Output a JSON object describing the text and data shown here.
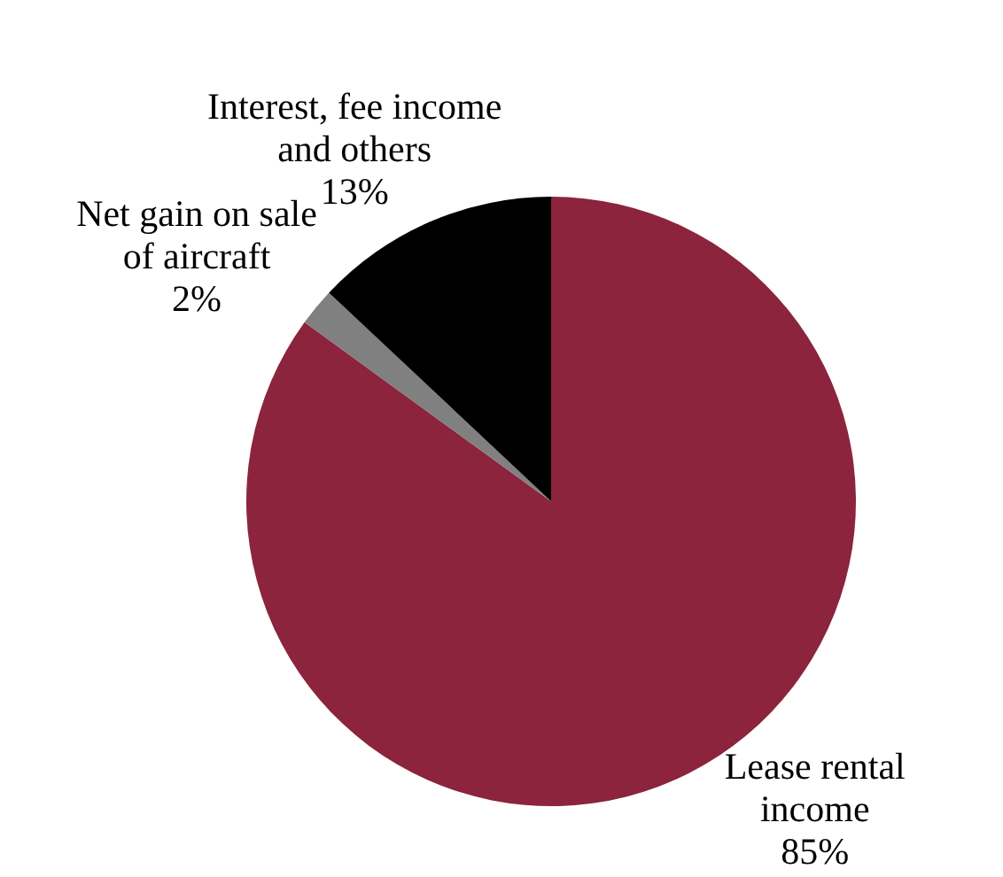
{
  "chart_data": {
    "type": "pie",
    "categories": [
      "Lease rental\nincome",
      "Net gain on sale\nof aircraft",
      "Interest, fee income\nand others"
    ],
    "values": [
      85,
      2,
      13
    ],
    "colors": [
      "#8b243c",
      "#808080",
      "#000000"
    ],
    "value_labels": [
      "85%",
      "2%",
      "13%"
    ]
  }
}
